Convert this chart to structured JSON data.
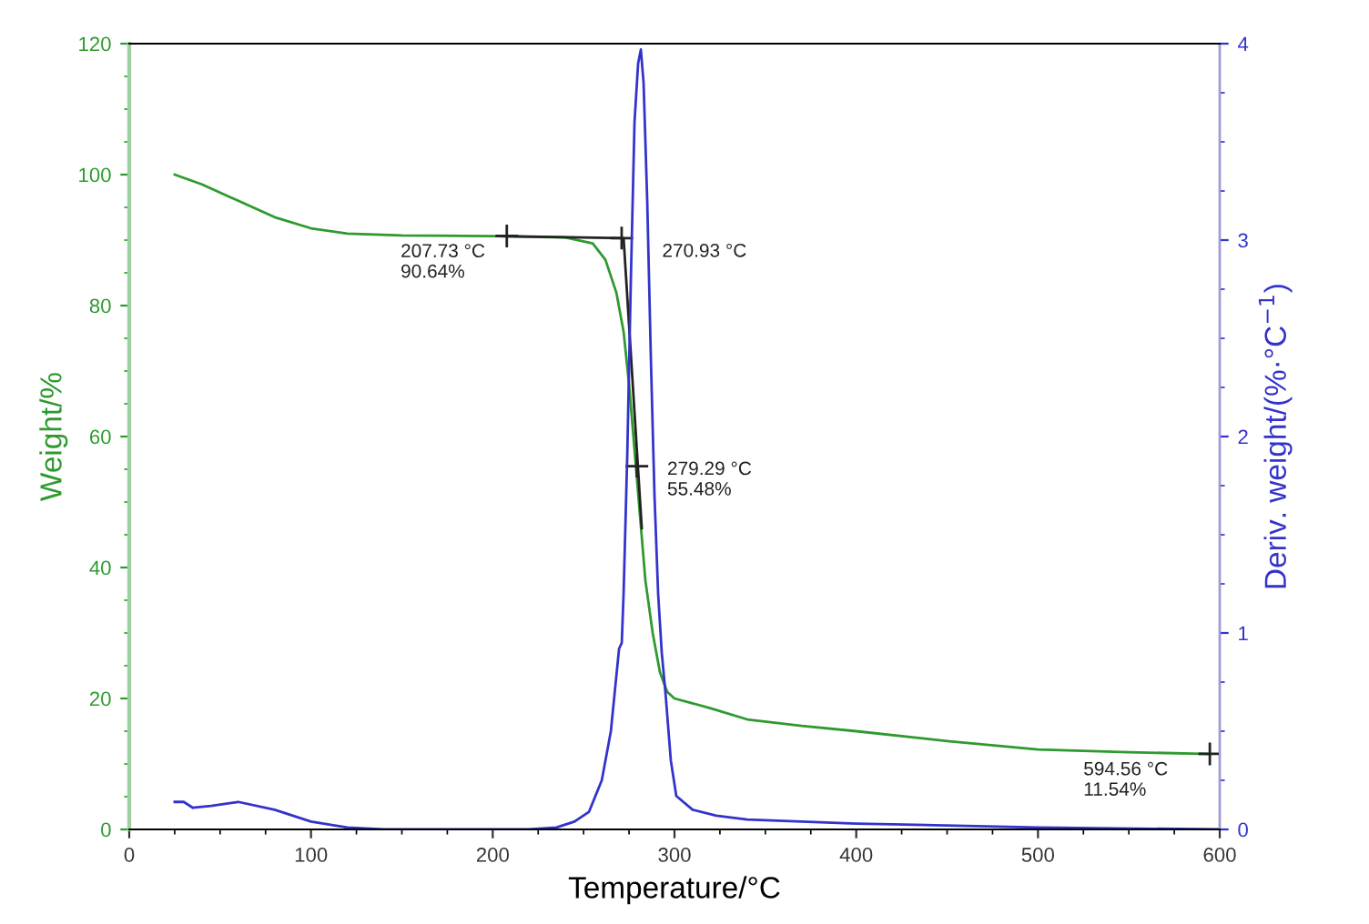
{
  "chart_data": {
    "type": "line",
    "xlabel": "Temperature/°C",
    "ylabel": "Weight/%",
    "y2label": "Deriv. weight/(%·°C$^{−1}$)",
    "xlim": [
      0,
      600
    ],
    "xticks": [
      0,
      100,
      200,
      300,
      400,
      500,
      600
    ],
    "ylim": [
      0,
      120
    ],
    "yticks": [
      0,
      20,
      40,
      60,
      80,
      100,
      120
    ],
    "y2lim": [
      0,
      4
    ],
    "y2ticks": [
      0,
      1,
      2,
      3,
      4
    ],
    "grid": false,
    "legend": false,
    "marker": "none",
    "series": [
      {
        "color": "#2e9a2e",
        "x": [
          25,
          40,
          60,
          80,
          100,
          120,
          150,
          200,
          240,
          255,
          262,
          268,
          272,
          275,
          278,
          281,
          284,
          288,
          292,
          296,
          300,
          320,
          340,
          370,
          400,
          450,
          500,
          550,
          594.56
        ],
        "values": [
          100,
          98.5,
          96,
          93.5,
          91.8,
          91,
          90.7,
          90.6,
          90.4,
          89.5,
          87,
          82,
          76,
          68,
          58,
          48,
          38,
          30,
          24,
          21,
          20,
          18.5,
          16.8,
          15.8,
          15,
          13.5,
          12.2,
          11.8,
          11.5
        ]
      },
      {
        "color": "#3333cc",
        "axis": "y2",
        "x": [
          25,
          30,
          35,
          45,
          60,
          80,
          100,
          120,
          140,
          220,
          235,
          245,
          253,
          260,
          265,
          269.5,
          271,
          272,
          274,
          276,
          278,
          280,
          281.5,
          283,
          285,
          287,
          289,
          291,
          293,
          295,
          298,
          301,
          310,
          323,
          340,
          400,
          500,
          600
        ],
        "values": [
          0.14,
          0.14,
          0.11,
          0.12,
          0.14,
          0.1,
          0.04,
          0.01,
          0,
          0,
          0.01,
          0.04,
          0.09,
          0.25,
          0.5,
          0.92,
          0.95,
          1.2,
          1.9,
          2.8,
          3.6,
          3.9,
          3.97,
          3.8,
          3.2,
          2.4,
          1.7,
          1.2,
          0.9,
          0.7,
          0.35,
          0.17,
          0.1,
          0.07,
          0.05,
          0.03,
          0.01,
          0
        ]
      },
      {
        "color": "#222222",
        "x": [
          205,
          272,
          282
        ],
        "values": [
          90.6,
          90.3,
          46
        ]
      }
    ],
    "annotations": [
      {
        "text": "207.73 °C\n90.64%",
        "x": 207.73,
        "y": 90.64
      },
      {
        "text": "270.93 °C",
        "x": 270.93,
        "y": 90.3
      },
      {
        "text": "279.29 °C\n55.48%",
        "x": 279.29,
        "y": 55.48
      },
      {
        "text": "594.56 °C\n11.54%",
        "x": 594.56,
        "y": 11.54
      }
    ]
  }
}
